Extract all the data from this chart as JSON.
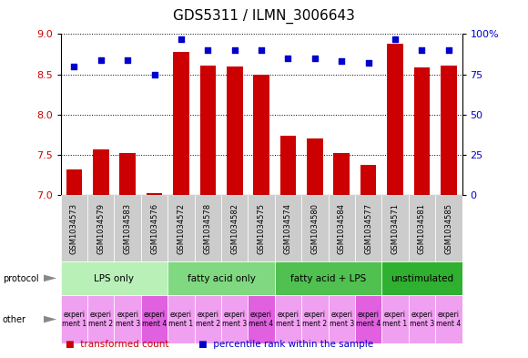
{
  "title": "GDS5311 / ILMN_3006643",
  "samples": [
    "GSM1034573",
    "GSM1034579",
    "GSM1034583",
    "GSM1034576",
    "GSM1034572",
    "GSM1034578",
    "GSM1034582",
    "GSM1034575",
    "GSM1034574",
    "GSM1034580",
    "GSM1034584",
    "GSM1034577",
    "GSM1034571",
    "GSM1034581",
    "GSM1034585"
  ],
  "transformed_count": [
    7.32,
    7.57,
    7.52,
    7.03,
    8.78,
    8.61,
    8.6,
    8.5,
    7.74,
    7.7,
    7.52,
    7.37,
    8.88,
    8.59,
    8.61
  ],
  "percentile_rank": [
    80,
    84,
    84,
    75,
    97,
    90,
    90,
    90,
    85,
    85,
    83,
    82,
    97,
    90,
    90
  ],
  "ylim_left": [
    7.0,
    9.0
  ],
  "ylim_right": [
    0,
    100
  ],
  "yticks_left": [
    7.0,
    7.5,
    8.0,
    8.5,
    9.0
  ],
  "yticks_right": [
    0,
    25,
    50,
    75,
    100
  ],
  "protocols": [
    {
      "label": "LPS only",
      "color": "#b8f0b8",
      "start": 0,
      "end": 4
    },
    {
      "label": "fatty acid only",
      "color": "#80d880",
      "start": 4,
      "end": 8
    },
    {
      "label": "fatty acid + LPS",
      "color": "#50c050",
      "start": 8,
      "end": 12
    },
    {
      "label": "unstimulated",
      "color": "#30b030",
      "start": 12,
      "end": 15
    }
  ],
  "other_labels_per_group": [
    [
      "experi\nment 1",
      "experi\nment 2",
      "experi\nment 3",
      "experi\nment 4"
    ],
    [
      "experi\nment 1",
      "experi\nment 2",
      "experi\nment 3",
      "experi\nment 4"
    ],
    [
      "experi\nment 1",
      "experi\nment 2",
      "experi\nment 3",
      "experi\nment 4"
    ],
    [
      "experi\nment 1",
      "experi\nment 3",
      "experi\nment 4"
    ]
  ],
  "other_cell_color_light": "#f0a0f0",
  "other_cell_color_dark": "#e060e0",
  "bar_color": "#cc0000",
  "dot_color": "#0000cc",
  "bar_bottom": 7.0,
  "dot_color_black": "#000000",
  "grid_linestyle": "dotted",
  "grid_color": "#000000",
  "bg_color": "#ffffff",
  "sample_box_color": "#cccccc",
  "label_color_red": "#cc0000",
  "label_color_blue": "#0000cc",
  "arrow_color": "#888888",
  "title_fontsize": 11,
  "legend_fontsize": 7.5,
  "ytick_fontsize": 8,
  "xtick_fontsize": 6,
  "proto_fontsize": 7.5,
  "other_fontsize": 5.5
}
